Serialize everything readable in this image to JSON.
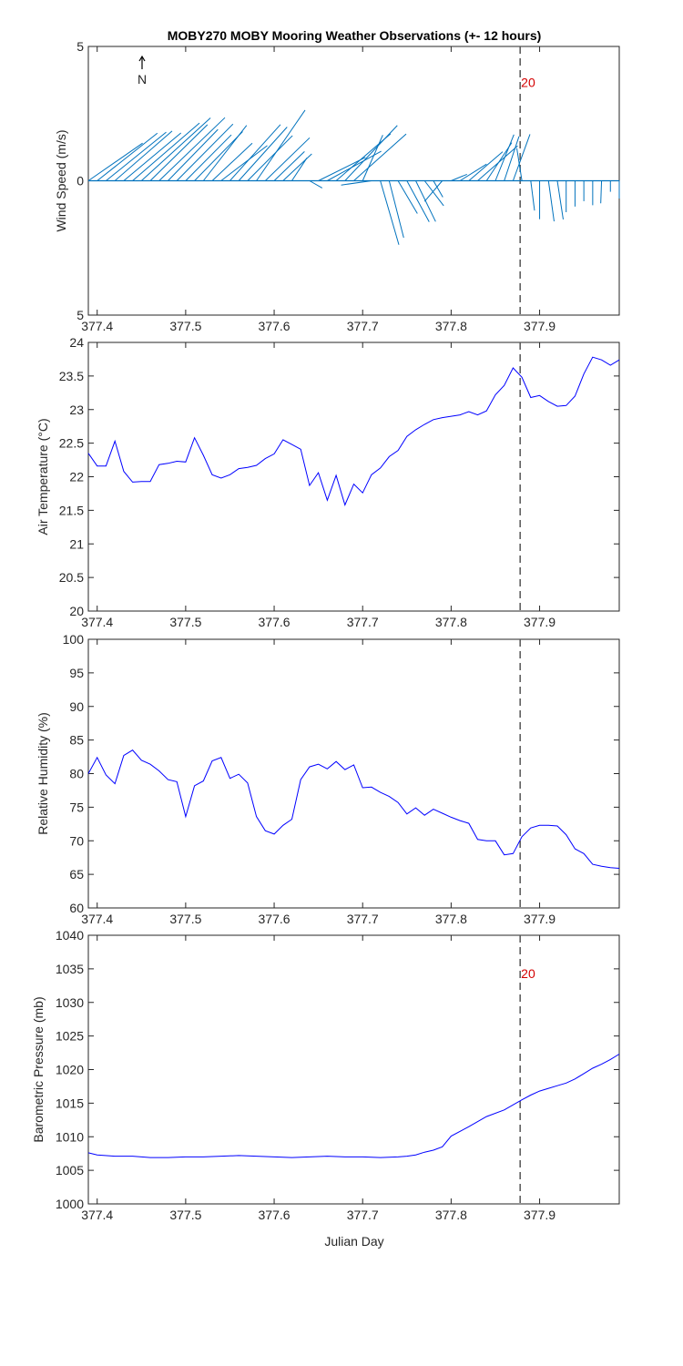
{
  "title": "MOBY270 MOBY Mooring Weather Observations (+- 12 hours)",
  "xlabel": "Julian Day",
  "north_label": "N",
  "marker_label": "20",
  "colors": {
    "wind": "#0072BD",
    "line": "#0000FF",
    "marker": "#D40000",
    "vline": "#555555"
  },
  "chart_data": [
    {
      "type": "quiver",
      "name": "wind",
      "ylabel": "Wind Speed (m/s)",
      "xlim": [
        377.39,
        377.99
      ],
      "ylim": [
        -5,
        5
      ],
      "yticks": [
        -5,
        0,
        5
      ],
      "ytick_labels": [
        "5",
        "0",
        "5"
      ],
      "xticks": [
        377.4,
        377.5,
        377.6,
        377.7,
        377.8,
        377.9
      ],
      "marker_x": 377.878,
      "marker_label_y": 3.5,
      "vectors": [
        [
          377.39,
          2.02,
          1.4
        ],
        [
          377.4,
          2.24,
          1.77
        ],
        [
          377.41,
          2.24,
          1.81
        ],
        [
          377.42,
          2.13,
          1.85
        ],
        [
          377.43,
          2.13,
          1.78
        ],
        [
          377.44,
          2.49,
          2.15
        ],
        [
          377.45,
          2.57,
          2.34
        ],
        [
          377.46,
          2.13,
          2.09
        ],
        [
          377.47,
          2.45,
          2.35
        ],
        [
          377.48,
          1.86,
          1.91
        ],
        [
          377.49,
          2.09,
          2.11
        ],
        [
          377.5,
          1.7,
          1.71
        ],
        [
          377.51,
          1.79,
          1.83
        ],
        [
          377.52,
          1.61,
          2.06
        ],
        [
          377.53,
          1.49,
          1.4
        ],
        [
          377.54,
          1.72,
          1.31
        ],
        [
          377.55,
          1.88,
          2.09
        ],
        [
          377.56,
          1.8,
          2.0
        ],
        [
          377.57,
          1.67,
          1.68
        ],
        [
          377.58,
          1.81,
          2.63
        ],
        [
          377.59,
          1.65,
          1.6
        ],
        [
          377.6,
          1.13,
          1.09
        ],
        [
          377.61,
          1.07,
          1.0
        ],
        [
          377.62,
          0.56,
          0.85
        ],
        [
          377.63,
          0.0,
          0.0
        ],
        [
          377.64,
          0.47,
          -0.27
        ],
        [
          377.65,
          1.75,
          0.87
        ],
        [
          377.66,
          2.01,
          1.1
        ],
        [
          377.67,
          2.03,
          1.75
        ],
        [
          377.68,
          1.95,
          2.06
        ],
        [
          377.69,
          1.95,
          1.74
        ],
        [
          377.7,
          0.75,
          1.7
        ],
        [
          377.71,
          -1.13,
          -0.16
        ],
        [
          377.72,
          0.69,
          -2.38
        ],
        [
          377.73,
          0.54,
          -2.12
        ],
        [
          377.74,
          0.72,
          -1.22
        ],
        [
          377.75,
          0.83,
          -1.53
        ],
        [
          377.76,
          0.74,
          -1.52
        ],
        [
          377.77,
          0.71,
          -0.93
        ],
        [
          377.78,
          0.35,
          -0.61
        ],
        [
          377.79,
          -0.66,
          -0.77
        ],
        [
          377.8,
          0.59,
          0.24
        ],
        [
          377.81,
          0.99,
          0.62
        ],
        [
          377.82,
          1.26,
          1.08
        ],
        [
          377.83,
          1.49,
          1.3
        ],
        [
          377.84,
          0.94,
          1.42
        ],
        [
          377.85,
          0.69,
          1.72
        ],
        [
          377.86,
          0.55,
          1.65
        ],
        [
          377.87,
          0.63,
          1.73
        ],
        [
          377.88,
          -0.19,
          1.21
        ],
        [
          377.89,
          0.14,
          -1.11
        ],
        [
          377.9,
          0.0,
          -1.43
        ],
        [
          377.91,
          0.21,
          -1.51
        ],
        [
          377.92,
          0.22,
          -1.44
        ],
        [
          377.93,
          0.0,
          -1.17
        ],
        [
          377.94,
          0.0,
          -0.96
        ],
        [
          377.95,
          0.0,
          -0.76
        ],
        [
          377.96,
          0.0,
          -0.91
        ],
        [
          377.97,
          -0.03,
          -0.84
        ],
        [
          377.98,
          0.0,
          -0.41
        ],
        [
          377.99,
          0.0,
          -0.66
        ]
      ]
    },
    {
      "type": "line",
      "name": "air-temperature",
      "ylabel": "Air Temperature (°C)",
      "xlim": [
        377.39,
        377.99
      ],
      "ylim": [
        20,
        24
      ],
      "yticks": [
        20,
        20.5,
        21,
        21.5,
        22,
        22.5,
        23,
        23.5,
        24
      ],
      "ytick_labels": [
        "20",
        "20.5",
        "21",
        "21.5",
        "22",
        "22.5",
        "23",
        "23.5",
        "24"
      ],
      "xticks": [
        377.4,
        377.5,
        377.6,
        377.7,
        377.8,
        377.9
      ],
      "marker_x": 377.878,
      "x": [
        377.39,
        377.4,
        377.41,
        377.42,
        377.43,
        377.44,
        377.45,
        377.46,
        377.47,
        377.48,
        377.49,
        377.5,
        377.51,
        377.52,
        377.53,
        377.54,
        377.55,
        377.56,
        377.57,
        377.58,
        377.59,
        377.6,
        377.61,
        377.62,
        377.63,
        377.64,
        377.65,
        377.66,
        377.67,
        377.68,
        377.69,
        377.7,
        377.71,
        377.72,
        377.73,
        377.74,
        377.75,
        377.76,
        377.77,
        377.78,
        377.79,
        377.8,
        377.81,
        377.82,
        377.83,
        377.84,
        377.85,
        377.86,
        377.87,
        377.88,
        377.89,
        377.9,
        377.91,
        377.92,
        377.93,
        377.94,
        377.95,
        377.96,
        377.97,
        377.98,
        377.99
      ],
      "y": [
        22.35,
        22.16,
        22.16,
        22.53,
        22.08,
        21.92,
        21.93,
        21.93,
        22.18,
        22.2,
        22.23,
        22.22,
        22.58,
        22.32,
        22.03,
        21.98,
        22.03,
        22.12,
        22.14,
        22.17,
        22.27,
        22.34,
        22.55,
        22.48,
        22.41,
        21.87,
        22.06,
        21.65,
        22.02,
        21.58,
        21.89,
        21.76,
        22.03,
        22.13,
        22.3,
        22.39,
        22.6,
        22.7,
        22.78,
        22.85,
        22.88,
        22.9,
        22.92,
        22.97,
        22.92,
        22.98,
        23.22,
        23.36,
        23.62,
        23.48,
        23.18,
        23.21,
        23.12,
        23.05,
        23.06,
        23.2,
        23.53,
        23.78,
        23.74,
        23.66,
        23.74
      ]
    },
    {
      "type": "line",
      "name": "relative-humidity",
      "ylabel": "Relative Humidity (%)",
      "xlim": [
        377.39,
        377.99
      ],
      "ylim": [
        60,
        100
      ],
      "yticks": [
        60,
        65,
        70,
        75,
        80,
        85,
        90,
        95,
        100
      ],
      "ytick_labels": [
        "60",
        "65",
        "70",
        "75",
        "80",
        "85",
        "90",
        "95",
        "100"
      ],
      "xticks": [
        377.4,
        377.5,
        377.6,
        377.7,
        377.8,
        377.9
      ],
      "marker_x": 377.878,
      "x": [
        377.39,
        377.4,
        377.41,
        377.42,
        377.43,
        377.44,
        377.45,
        377.46,
        377.47,
        377.48,
        377.49,
        377.5,
        377.51,
        377.52,
        377.53,
        377.54,
        377.55,
        377.56,
        377.57,
        377.58,
        377.59,
        377.6,
        377.61,
        377.62,
        377.63,
        377.64,
        377.65,
        377.66,
        377.67,
        377.68,
        377.69,
        377.7,
        377.71,
        377.72,
        377.73,
        377.74,
        377.75,
        377.76,
        377.77,
        377.78,
        377.79,
        377.8,
        377.81,
        377.82,
        377.83,
        377.84,
        377.85,
        377.86,
        377.87,
        377.88,
        377.89,
        377.9,
        377.91,
        377.92,
        377.93,
        377.94,
        377.95,
        377.96,
        377.97,
        377.98,
        377.99
      ],
      "y": [
        80.0,
        82.4,
        79.8,
        78.5,
        82.7,
        83.5,
        82.0,
        81.4,
        80.4,
        79.1,
        78.8,
        73.6,
        78.2,
        78.9,
        81.9,
        82.4,
        79.3,
        79.9,
        78.6,
        73.6,
        71.5,
        71.0,
        72.3,
        73.2,
        79.1,
        81.0,
        81.4,
        80.7,
        81.8,
        80.6,
        81.3,
        77.9,
        78.0,
        77.2,
        76.6,
        75.7,
        74.0,
        74.9,
        73.8,
        74.7,
        74.1,
        73.5,
        73.0,
        72.6,
        70.2,
        70.0,
        70.0,
        67.9,
        68.1,
        70.6,
        71.9,
        72.3,
        72.3,
        72.2,
        70.9,
        68.8,
        68.1,
        66.5,
        66.2,
        66.0,
        65.9
      ]
    },
    {
      "type": "line",
      "name": "barometric-pressure",
      "ylabel": "Barometric Pressure (mb)",
      "xlim": [
        377.39,
        377.99
      ],
      "ylim": [
        1000,
        1040
      ],
      "yticks": [
        1000,
        1005,
        1010,
        1015,
        1020,
        1025,
        1030,
        1035,
        1040
      ],
      "ytick_labels": [
        "1000",
        "1005",
        "1010",
        "1015",
        "1020",
        "1025",
        "1030",
        "1035",
        "1040"
      ],
      "xticks": [
        377.4,
        377.5,
        377.6,
        377.7,
        377.8,
        377.9
      ],
      "marker_x": 377.878,
      "marker_label_y": 1033.6,
      "x": [
        377.39,
        377.4,
        377.42,
        377.44,
        377.46,
        377.48,
        377.5,
        377.52,
        377.54,
        377.56,
        377.58,
        377.6,
        377.62,
        377.64,
        377.66,
        377.68,
        377.7,
        377.72,
        377.74,
        377.75,
        377.76,
        377.77,
        377.78,
        377.79,
        377.8,
        377.82,
        377.84,
        377.86,
        377.88,
        377.89,
        377.9,
        377.91,
        377.92,
        377.93,
        377.94,
        377.95,
        377.96,
        377.97,
        377.98,
        377.99
      ],
      "y": [
        1007.6,
        1007.3,
        1007.1,
        1007.1,
        1006.9,
        1006.9,
        1007.0,
        1007.0,
        1007.1,
        1007.2,
        1007.1,
        1007.0,
        1006.9,
        1007.0,
        1007.1,
        1007.0,
        1007.0,
        1006.9,
        1007.0,
        1007.1,
        1007.3,
        1007.7,
        1008.0,
        1008.5,
        1010.1,
        1011.5,
        1013.0,
        1014.0,
        1015.5,
        1016.2,
        1016.8,
        1017.2,
        1017.6,
        1018.0,
        1018.6,
        1019.4,
        1020.2,
        1020.8,
        1021.5,
        1022.3
      ]
    }
  ]
}
